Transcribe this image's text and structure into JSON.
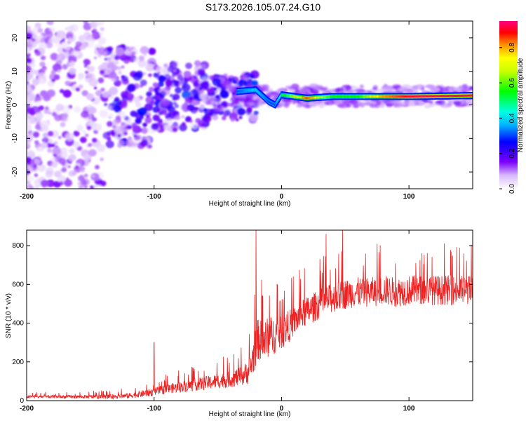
{
  "title": "S173.2026.105.07.24.G10",
  "colors": {
    "snr_line": "#ee2222",
    "axis": "#000000",
    "background": "#ffffff"
  },
  "chart_data": [
    {
      "type": "heatmap",
      "name": "spectrogram",
      "xlabel": "Height of straight line (km)",
      "ylabel": "Frequency (Hz)",
      "xlim": [
        -200,
        150
      ],
      "ylim": [
        -25,
        25
      ],
      "xticks": [
        -200,
        -100,
        0,
        100
      ],
      "xtick_labels": [
        "-200",
        "-100",
        "0",
        "100"
      ],
      "yticks": [
        -20,
        -10,
        0,
        10,
        20
      ],
      "ytick_labels": [
        "-20",
        "-10",
        "0",
        "10",
        "20"
      ],
      "colorbar": {
        "label": "Normalized spectral amplitude",
        "range": [
          0,
          0.95
        ],
        "ticks": [
          0.0,
          0.2,
          0.4,
          0.6,
          0.8
        ],
        "tick_labels": [
          "0.0",
          "0.2",
          "0.4",
          "0.6",
          "0.8"
        ],
        "colormap": "rainbow (white-violet-blue-cyan-green-yellow-orange-red-magenta)"
      },
      "description_points": {
        "coherent_ridge": [
          {
            "x": -35,
            "y": 4,
            "amp": 0.3
          },
          {
            "x": -20,
            "y": 4.5,
            "amp": 0.4
          },
          {
            "x": -10,
            "y": 1,
            "amp": 0.3
          },
          {
            "x": -5,
            "y": 0,
            "amp": 0.3
          },
          {
            "x": 0,
            "y": 3,
            "amp": 0.5
          },
          {
            "x": 20,
            "y": 2,
            "amp": 0.85
          },
          {
            "x": 40,
            "y": 2.5,
            "amp": 0.55
          },
          {
            "x": 60,
            "y": 2.5,
            "amp": 0.55
          },
          {
            "x": 80,
            "y": 2.5,
            "amp": 0.8
          },
          {
            "x": 100,
            "y": 2.5,
            "amp": 0.9
          },
          {
            "x": 120,
            "y": 2.6,
            "amp": 0.92
          },
          {
            "x": 150,
            "y": 2.8,
            "amp": 0.93
          }
        ],
        "scatter_region": {
          "x": [
            -200,
            -20
          ],
          "y": [
            -25,
            25
          ],
          "amp": [
            0.02,
            0.25
          ]
        }
      }
    },
    {
      "type": "line",
      "name": "snr",
      "xlabel": "Height of straight line (km)",
      "ylabel": "SNR (10 * v/v)",
      "xlim": [
        -200,
        150
      ],
      "ylim": [
        0,
        880
      ],
      "xticks": [
        -200,
        -100,
        0,
        100
      ],
      "xtick_labels": [
        "-200",
        "-100",
        "0",
        "100"
      ],
      "yticks": [
        0,
        200,
        400,
        600,
        800
      ],
      "ytick_labels": [
        "0",
        "200",
        "400",
        "600",
        "800"
      ],
      "series": [
        {
          "name": "SNR",
          "x": [
            -200,
            -180,
            -160,
            -140,
            -120,
            -110,
            -100,
            -90,
            -80,
            -70,
            -60,
            -50,
            -40,
            -30,
            -25,
            -20,
            -18,
            -15,
            -10,
            -5,
            0,
            5,
            10,
            15,
            20,
            25,
            30,
            40,
            50,
            60,
            70,
            80,
            90,
            100,
            110,
            120,
            130,
            140,
            150
          ],
          "y": [
            20,
            20,
            20,
            20,
            25,
            35,
            45,
            60,
            70,
            80,
            90,
            100,
            110,
            130,
            160,
            280,
            320,
            300,
            330,
            340,
            350,
            380,
            410,
            440,
            460,
            480,
            500,
            530,
            550,
            560,
            560,
            570,
            560,
            570,
            570,
            570,
            570,
            570,
            570
          ],
          "noise_amplitude": [
            10,
            12,
            12,
            15,
            20,
            25,
            30,
            35,
            40,
            45,
            50,
            55,
            60,
            75,
            100,
            160,
            160,
            150,
            150,
            140,
            120,
            120,
            110,
            110,
            110,
            110,
            110,
            110,
            110,
            110,
            110,
            110,
            110,
            110,
            110,
            110,
            110,
            110,
            110
          ],
          "peaks": [
            {
              "x": -20,
              "y": 880
            },
            {
              "x": 48,
              "y": 880
            },
            {
              "x": 35,
              "y": 860
            },
            {
              "x": -100,
              "y": 300
            },
            {
              "x": 75,
              "y": 810
            }
          ]
        }
      ]
    }
  ]
}
